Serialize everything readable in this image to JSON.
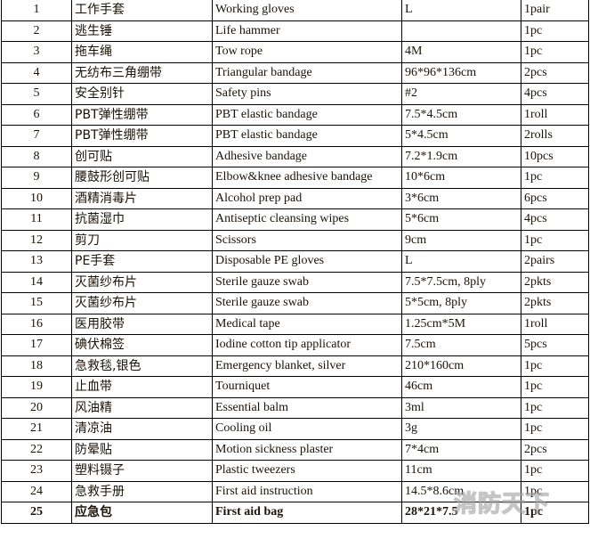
{
  "rows": [
    [
      "1",
      "工作手套",
      "Working gloves",
      "L",
      "1pair"
    ],
    [
      "2",
      "逃生锤",
      "Life hammer",
      "",
      "1pc"
    ],
    [
      "3",
      "拖车绳",
      "Tow rope",
      "4M",
      "1pc"
    ],
    [
      "4",
      "无纺布三角绷带",
      "Triangular bandage",
      "96*96*136cm",
      "2pcs"
    ],
    [
      "5",
      "安全别针",
      "Safety pins",
      "#2",
      "4pcs"
    ],
    [
      "6",
      "PBT弹性绷带",
      "PBT elastic bandage",
      "7.5*4.5cm",
      "1roll"
    ],
    [
      "7",
      "PBT弹性绷带",
      "PBT elastic bandage",
      "5*4.5cm",
      "2rolls"
    ],
    [
      "8",
      "创可贴",
      "Adhesive bandage",
      "7.2*1.9cm",
      "10pcs"
    ],
    [
      "9",
      "腰鼓形创可贴",
      "Elbow&knee adhesive bandage",
      "10*6cm",
      "1pc"
    ],
    [
      "10",
      "酒精消毒片",
      "Alcohol prep pad",
      "3*6cm",
      "6pcs"
    ],
    [
      "11",
      "抗菌湿巾",
      "Antiseptic cleansing wipes",
      "5*6cm",
      "4pcs"
    ],
    [
      "12",
      "剪刀",
      "Scissors",
      "9cm",
      "1pc"
    ],
    [
      "13",
      "PE手套",
      "Disposable PE gloves",
      "L",
      "2pairs"
    ],
    [
      "14",
      "灭菌纱布片",
      "Sterile gauze swab",
      "7.5*7.5cm, 8ply",
      "2pkts"
    ],
    [
      "15",
      "灭菌纱布片",
      "Sterile gauze swab",
      "5*5cm, 8ply",
      "2pkts"
    ],
    [
      "16",
      "医用胶带",
      "Medical tape",
      "1.25cm*5M",
      "1roll"
    ],
    [
      "17",
      "碘伏棉签",
      "Iodine cotton tip applicator",
      "7.5cm",
      "5pcs"
    ],
    [
      "18",
      "急救毯,银色",
      "Emergency blanket, silver",
      "210*160cm",
      "1pc"
    ],
    [
      "19",
      "止血带",
      "Tourniquet",
      "46cm",
      "1pc"
    ],
    [
      "20",
      "风油精",
      "Essential balm",
      "3ml",
      "1pc"
    ],
    [
      "21",
      "清凉油",
      "Cooling oil",
      "3g",
      "1pc"
    ],
    [
      "22",
      "防晕贴",
      "Motion sickness plaster",
      "7*4cm",
      "2pcs"
    ],
    [
      "23",
      "塑料镊子",
      "Plastic tweezers",
      "11cm",
      "1pc"
    ],
    [
      "24",
      "急救手册",
      "First aid instruction",
      "14.5*8.6cm",
      "1pc"
    ],
    [
      "25",
      "应急包",
      "First aid bag",
      "28*21*7.5",
      "1pc"
    ]
  ],
  "watermark": "消防天下"
}
